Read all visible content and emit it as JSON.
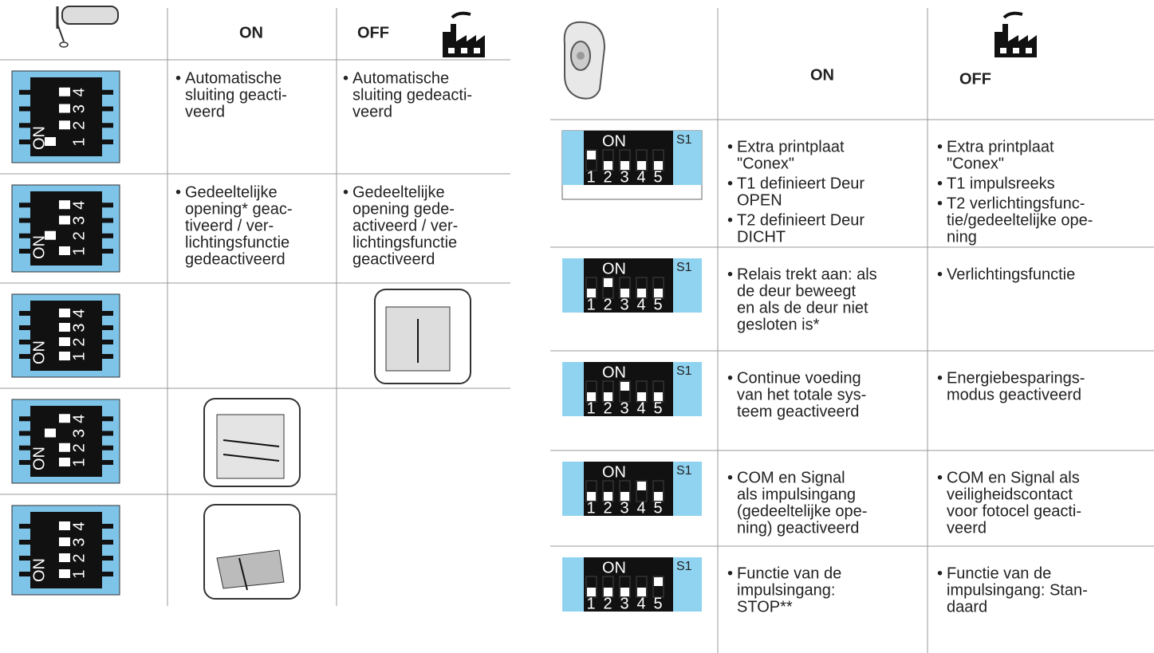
{
  "bullet": "•",
  "left_dip": {
    "on": "ON",
    "numbers": [
      "1",
      "2",
      "3",
      "4"
    ]
  },
  "right_dip": {
    "on": "ON",
    "id": "S1",
    "numbers": [
      "1",
      "2",
      "3",
      "4",
      "5"
    ]
  },
  "left_table": {
    "header": {
      "on": "ON",
      "off": "OFF"
    },
    "rows": [
      {
        "dip": [
          1,
          0,
          0,
          0
        ],
        "on": [
          [
            "Automatische",
            "sluiting geacti-",
            "veerd"
          ]
        ],
        "off": [
          [
            "Automatische",
            "sluiting gedeacti-",
            "veerd"
          ]
        ]
      },
      {
        "dip": [
          0,
          1,
          0,
          0
        ],
        "on": [
          [
            "Gedeeltelijke",
            "opening* geac-",
            "tiveerd / ver-",
            "lichtingsfunctie",
            "gedeactiveerd"
          ]
        ],
        "off": [
          [
            "Gedeeltelijke",
            "opening gede-",
            "activeerd / ver-",
            "lichtingsfunctie",
            "geactiveerd"
          ]
        ]
      },
      {
        "dip": [
          0,
          0,
          0,
          0
        ],
        "on": [],
        "off": []
      },
      {
        "dip": [
          0,
          0,
          1,
          0
        ],
        "on": [],
        "off": []
      },
      {
        "dip": [
          0,
          0,
          0,
          0
        ],
        "on": [],
        "off": []
      }
    ]
  },
  "right_table": {
    "header": {
      "on": "ON",
      "off": "OFF"
    },
    "rows": [
      {
        "dip": [
          1,
          0,
          0,
          0,
          0
        ],
        "on": [
          [
            "Extra printplaat",
            "\"Conex\""
          ],
          [
            "T1 definieert Deur",
            "OPEN"
          ],
          [
            "T2 definieert Deur",
            "DICHT"
          ]
        ],
        "off": [
          [
            "Extra printplaat",
            "\"Conex\""
          ],
          [
            "T1 impulsreeks"
          ],
          [
            "T2 verlichtingsfunc-",
            "tie/gedeeltelijke ope-",
            "ning"
          ]
        ]
      },
      {
        "dip": [
          0,
          1,
          0,
          0,
          0
        ],
        "on": [
          [
            "Relais trekt aan: als",
            "de deur beweegt",
            "en als de deur niet",
            "gesloten is*"
          ]
        ],
        "off": [
          [
            "Verlichtingsfunctie"
          ]
        ]
      },
      {
        "dip": [
          0,
          0,
          1,
          0,
          0
        ],
        "on": [
          [
            "Continue voeding",
            "van het totale sys-",
            "teem geactiveerd"
          ]
        ],
        "off": [
          [
            "Energiebesparings-",
            "modus geactiveerd"
          ]
        ]
      },
      {
        "dip": [
          0,
          0,
          0,
          1,
          0
        ],
        "on": [
          [
            "COM en Signal",
            "als impulsingang",
            "(gedeeltelijke ope-",
            "ning) geactiveerd"
          ]
        ],
        "off": [
          [
            "COM en Signal als",
            "veiligheidscontact",
            "voor fotocel geacti-",
            "veerd"
          ]
        ]
      },
      {
        "dip": [
          0,
          0,
          0,
          0,
          1
        ],
        "on": [
          [
            "Functie van de",
            "impulsingang:",
            "STOP**"
          ]
        ],
        "off": [
          [
            "Functie van de",
            "impulsingang: Stan-",
            "daard"
          ]
        ]
      }
    ]
  }
}
